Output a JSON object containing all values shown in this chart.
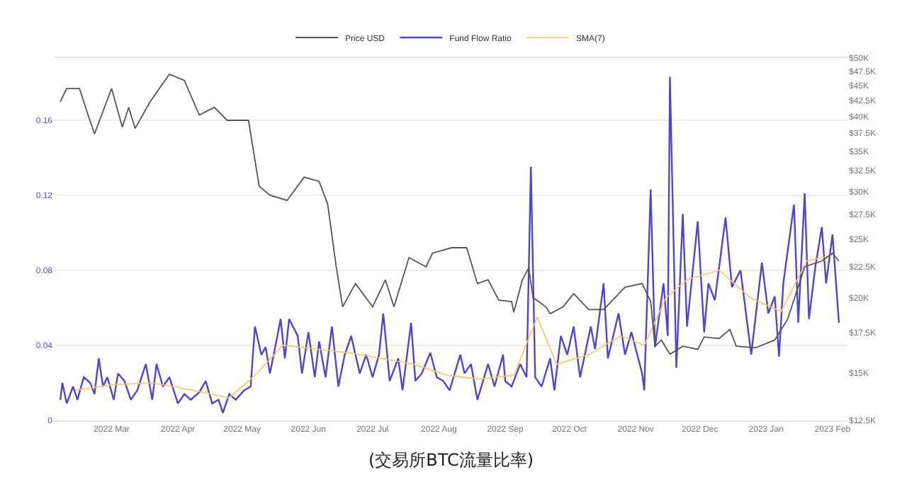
{
  "chart_data": {
    "type": "line",
    "legend": "top",
    "grid": "y",
    "log": "y2",
    "marker": "none",
    "line_style": "solid",
    "annotations": [
      "(交易所BTC流量比率)"
    ],
    "xlim": [
      "2022-02-02",
      "2023-02-08"
    ],
    "xticks": [
      {
        "value": "2022-03-01",
        "label": "2022 Mar"
      },
      {
        "value": "2022-04-01",
        "label": "2022 Apr"
      },
      {
        "value": "2022-05-01",
        "label": "2022 May"
      },
      {
        "value": "2022-06-01",
        "label": "2022 Jun"
      },
      {
        "value": "2022-07-01",
        "label": "2022 Jul"
      },
      {
        "value": "2022-08-01",
        "label": "2022 Aug"
      },
      {
        "value": "2022-09-01",
        "label": "2022 Sep"
      },
      {
        "value": "2022-10-01",
        "label": "2022 Oct"
      },
      {
        "value": "2022-11-01",
        "label": "2022 Nov"
      },
      {
        "value": "2022-12-01",
        "label": "2022 Dec"
      },
      {
        "value": "2023-01-01",
        "label": "2023 Jan"
      },
      {
        "value": "2023-02-01",
        "label": "2023 Feb"
      }
    ],
    "ylim": [
      0,
      0.193
    ],
    "yticks": [
      0,
      0.04,
      0.08,
      0.12,
      0.16
    ],
    "y2lim": [
      12500,
      50000
    ],
    "y2ticks": [
      {
        "value": 12500,
        "label": "$12.5K"
      },
      {
        "value": 15000,
        "label": "$15K"
      },
      {
        "value": 17500,
        "label": "$17.5K"
      },
      {
        "value": 20000,
        "label": "$20K"
      },
      {
        "value": 22500,
        "label": "$22.5K"
      },
      {
        "value": 25000,
        "label": "$25K"
      },
      {
        "value": 27500,
        "label": "$27.5K"
      },
      {
        "value": 30000,
        "label": "$30K"
      },
      {
        "value": 32500,
        "label": "$32.5K"
      },
      {
        "value": 35000,
        "label": "$35K"
      },
      {
        "value": 37500,
        "label": "$37.5K"
      },
      {
        "value": 40000,
        "label": "$40K"
      },
      {
        "value": 42500,
        "label": "$42.5K"
      },
      {
        "value": 45000,
        "label": "$45K"
      },
      {
        "value": 47500,
        "label": "$47.5K"
      },
      {
        "value": 50000,
        "label": "$50K"
      }
    ],
    "series": [
      {
        "name": "Price USD",
        "color": "#555555",
        "axis": "y2",
        "x": [
          "2022-02-05",
          "2022-02-08",
          "2022-02-14",
          "2022-02-18",
          "2022-02-21",
          "2022-03-01",
          "2022-03-06",
          "2022-03-09",
          "2022-03-12",
          "2022-03-19",
          "2022-03-26",
          "2022-03-28",
          "2022-04-04",
          "2022-04-11",
          "2022-04-18",
          "2022-04-24",
          "2022-05-04",
          "2022-05-09",
          "2022-05-14",
          "2022-05-22",
          "2022-05-30",
          "2022-06-06",
          "2022-06-10",
          "2022-06-14",
          "2022-06-17",
          "2022-06-23",
          "2022-07-01",
          "2022-07-07",
          "2022-07-11",
          "2022-07-18",
          "2022-07-26",
          "2022-07-29",
          "2022-08-07",
          "2022-08-14",
          "2022-08-19",
          "2022-08-24",
          "2022-08-29",
          "2022-09-04",
          "2022-09-05",
          "2022-09-09",
          "2022-09-12",
          "2022-09-14",
          "2022-09-20",
          "2022-09-22",
          "2022-09-28",
          "2022-10-03",
          "2022-10-10",
          "2022-10-17",
          "2022-10-27",
          "2022-11-04",
          "2022-11-08",
          "2022-11-10",
          "2022-11-13",
          "2022-11-17",
          "2022-11-23",
          "2022-11-30",
          "2022-12-03",
          "2022-12-10",
          "2022-12-15",
          "2022-12-18",
          "2022-12-27",
          "2023-01-05",
          "2023-01-11",
          "2023-01-19",
          "2023-01-27",
          "2023-02-01",
          "2023-02-04"
        ],
        "values": [
          42300,
          44500,
          44500,
          40200,
          37400,
          44500,
          38400,
          41400,
          38200,
          42300,
          45900,
          47000,
          45900,
          40200,
          41400,
          39400,
          39400,
          30600,
          29600,
          29000,
          31700,
          31200,
          28600,
          22500,
          19300,
          21100,
          19300,
          21400,
          19300,
          23300,
          22500,
          23700,
          24200,
          24200,
          21100,
          21400,
          19800,
          19700,
          18900,
          21400,
          22400,
          20000,
          19300,
          18800,
          19300,
          20300,
          19100,
          19100,
          20800,
          21100,
          19700,
          16600,
          17000,
          16100,
          16600,
          16400,
          17200,
          17100,
          17700,
          16600,
          16500,
          17000,
          18400,
          22500,
          23000,
          23700,
          23000
        ]
      },
      {
        "name": "Fund Flow Ratio",
        "color": "#4f44d4",
        "x": [
          "2022-02-05",
          "2022-02-06",
          "2022-02-08",
          "2022-02-11",
          "2022-02-13",
          "2022-02-16",
          "2022-02-19",
          "2022-02-21",
          "2022-02-23",
          "2022-02-25",
          "2022-02-27",
          "2022-03-02",
          "2022-03-04",
          "2022-03-07",
          "2022-03-10",
          "2022-03-13",
          "2022-03-17",
          "2022-03-20",
          "2022-03-22",
          "2022-03-25",
          "2022-03-28",
          "2022-04-01",
          "2022-04-04",
          "2022-04-07",
          "2022-04-11",
          "2022-04-14",
          "2022-04-17",
          "2022-04-20",
          "2022-04-22",
          "2022-04-25",
          "2022-04-28",
          "2022-05-02",
          "2022-05-05",
          "2022-05-07",
          "2022-05-10",
          "2022-05-12",
          "2022-05-14",
          "2022-05-17",
          "2022-05-19",
          "2022-05-21",
          "2022-05-23",
          "2022-05-27",
          "2022-05-29",
          "2022-06-01",
          "2022-06-04",
          "2022-06-06",
          "2022-06-09",
          "2022-06-12",
          "2022-06-15",
          "2022-06-18",
          "2022-06-21",
          "2022-06-25",
          "2022-06-28",
          "2022-07-01",
          "2022-07-04",
          "2022-07-06",
          "2022-07-09",
          "2022-07-13",
          "2022-07-15",
          "2022-07-19",
          "2022-07-21",
          "2022-07-24",
          "2022-07-28",
          "2022-07-31",
          "2022-08-03",
          "2022-08-06",
          "2022-08-11",
          "2022-08-13",
          "2022-08-16",
          "2022-08-19",
          "2022-08-24",
          "2022-08-27",
          "2022-08-31",
          "2022-09-01",
          "2022-09-04",
          "2022-09-08",
          "2022-09-11",
          "2022-09-13",
          "2022-09-15",
          "2022-09-18",
          "2022-09-22",
          "2022-09-24",
          "2022-09-27",
          "2022-09-30",
          "2022-10-03",
          "2022-10-06",
          "2022-10-11",
          "2022-10-13",
          "2022-10-17",
          "2022-10-19",
          "2022-10-24",
          "2022-10-27",
          "2022-10-30",
          "2022-11-04",
          "2022-11-05",
          "2022-11-08",
          "2022-11-10",
          "2022-11-14",
          "2022-11-16",
          "2022-11-17",
          "2022-11-20",
          "2022-11-23",
          "2022-11-25",
          "2022-11-30",
          "2022-12-03",
          "2022-12-05",
          "2022-12-08",
          "2022-12-13",
          "2022-12-16",
          "2022-12-20",
          "2022-12-25",
          "2022-12-30",
          "2023-01-02",
          "2023-01-05",
          "2023-01-07",
          "2023-01-09",
          "2023-01-14",
          "2023-01-16",
          "2023-01-19",
          "2023-01-21",
          "2023-01-24",
          "2023-01-27",
          "2023-01-29",
          "2023-02-01",
          "2023-02-04"
        ],
        "values": [
          0.011,
          0.02,
          0.009,
          0.018,
          0.011,
          0.023,
          0.02,
          0.014,
          0.033,
          0.018,
          0.023,
          0.011,
          0.025,
          0.021,
          0.011,
          0.016,
          0.03,
          0.011,
          0.03,
          0.018,
          0.023,
          0.009,
          0.014,
          0.011,
          0.015,
          0.021,
          0.009,
          0.011,
          0.004,
          0.014,
          0.011,
          0.016,
          0.018,
          0.05,
          0.035,
          0.039,
          0.025,
          0.042,
          0.054,
          0.033,
          0.054,
          0.045,
          0.025,
          0.047,
          0.023,
          0.042,
          0.023,
          0.05,
          0.018,
          0.035,
          0.045,
          0.025,
          0.035,
          0.023,
          0.035,
          0.057,
          0.021,
          0.033,
          0.016,
          0.052,
          0.021,
          0.025,
          0.036,
          0.023,
          0.021,
          0.016,
          0.035,
          0.025,
          0.03,
          0.011,
          0.03,
          0.018,
          0.035,
          0.021,
          0.018,
          0.03,
          0.023,
          0.135,
          0.023,
          0.018,
          0.033,
          0.016,
          0.045,
          0.035,
          0.05,
          0.023,
          0.05,
          0.038,
          0.073,
          0.033,
          0.057,
          0.035,
          0.047,
          0.025,
          0.016,
          0.123,
          0.039,
          0.073,
          0.045,
          0.183,
          0.028,
          0.11,
          0.05,
          0.106,
          0.047,
          0.073,
          0.064,
          0.108,
          0.071,
          0.08,
          0.035,
          0.084,
          0.057,
          0.066,
          0.034,
          0.073,
          0.115,
          0.052,
          0.121,
          0.054,
          0.082,
          0.103,
          0.073,
          0.099,
          0.052
        ]
      },
      {
        "name": "SMA(7)",
        "color": "#f5c95a",
        "x": [
          "2022-02-12",
          "2022-03-01",
          "2022-03-20",
          "2022-04-08",
          "2022-04-25",
          "2022-05-08",
          "2022-05-20",
          "2022-06-05",
          "2022-06-20",
          "2022-07-05",
          "2022-07-20",
          "2022-08-05",
          "2022-08-20",
          "2022-09-05",
          "2022-09-16",
          "2022-09-25",
          "2022-10-10",
          "2022-10-25",
          "2022-11-05",
          "2022-11-15",
          "2022-11-25",
          "2022-12-10",
          "2022-12-25",
          "2023-01-08",
          "2023-01-20",
          "2023-02-01"
        ],
        "values": [
          0.016,
          0.019,
          0.02,
          0.016,
          0.012,
          0.025,
          0.04,
          0.038,
          0.036,
          0.033,
          0.03,
          0.024,
          0.022,
          0.024,
          0.055,
          0.03,
          0.035,
          0.045,
          0.04,
          0.065,
          0.075,
          0.08,
          0.065,
          0.058,
          0.085,
          0.088
        ]
      }
    ]
  }
}
